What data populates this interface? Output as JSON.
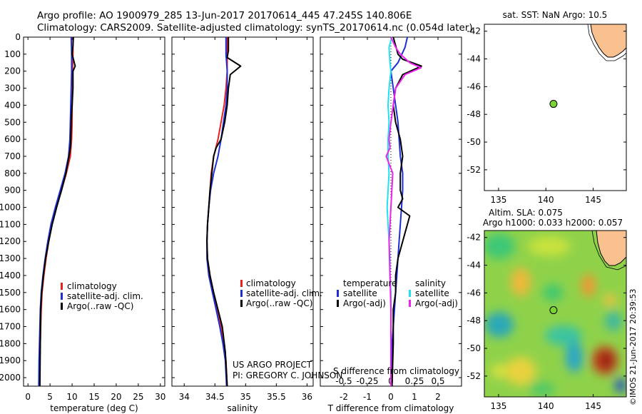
{
  "header": {
    "line1": "Argo profile: AO 1900979_285 13-Jun-2017 20170614_445 47.245S 140.806E",
    "line2": "Climatology: CARS2009. Satellite-adjusted climatology: synTS_20170614.nc (0.054d later)"
  },
  "colors": {
    "climatology": "#e8231f",
    "satellite": "#1f2fd6",
    "argo": "#000000",
    "sal_satellite": "#22e0f0",
    "sal_argo": "#ee22ee",
    "land": "#f9c18f",
    "float": "#7cd434"
  },
  "chart_data": [
    {
      "type": "line",
      "xlabel": "temperature (deg C)",
      "ylabel": "",
      "xlim": [
        -1,
        31
      ],
      "ylim": [
        2050,
        0
      ],
      "xticks": [
        0,
        5,
        10,
        15,
        20,
        25,
        30
      ],
      "yticks": [
        0,
        100,
        200,
        300,
        400,
        500,
        600,
        700,
        800,
        900,
        1000,
        1100,
        1200,
        1300,
        1400,
        1500,
        1600,
        1700,
        1800,
        1900,
        2000
      ],
      "legend": [
        "climatology",
        "satellite-adj. clim.",
        "Argo(..raw -QC)"
      ],
      "series": [
        {
          "name": "climatology",
          "x": [
            10.2,
            10.2,
            10.1,
            10.1,
            10.0,
            10.0,
            9.9,
            9.6,
            8.7,
            7.6,
            6.4,
            5.4,
            4.7,
            4.1,
            3.6,
            3.2,
            3.0,
            2.9,
            2.8,
            2.7,
            2.65
          ],
          "y": [
            0,
            100,
            200,
            300,
            400,
            500,
            600,
            700,
            800,
            900,
            1000,
            1100,
            1200,
            1300,
            1400,
            1500,
            1600,
            1700,
            1800,
            1900,
            2050
          ]
        },
        {
          "name": "satellite-adj. clim.",
          "x": [
            9.8,
            9.9,
            9.9,
            9.8,
            9.7,
            9.6,
            9.5,
            9.2,
            8.4,
            7.3,
            6.2,
            5.2,
            4.5,
            3.9,
            3.4,
            3.0,
            2.8,
            2.7,
            2.6,
            2.5,
            2.45
          ],
          "y": [
            0,
            100,
            200,
            300,
            400,
            500,
            600,
            700,
            800,
            900,
            1000,
            1100,
            1200,
            1300,
            1400,
            1500,
            1600,
            1700,
            1800,
            1900,
            2050
          ]
        },
        {
          "name": "Argo(..raw -QC)",
          "x": [
            10.3,
            10.2,
            10.0,
            10.7,
            10.2,
            10.2,
            10.0,
            9.8,
            9.7,
            9.6,
            9.3,
            8.6,
            7.6,
            6.5,
            5.5,
            4.7,
            4.0,
            3.5,
            3.1,
            2.9,
            2.8,
            2.7
          ],
          "y": [
            0,
            50,
            100,
            170,
            200,
            300,
            400,
            500,
            600,
            650,
            700,
            800,
            900,
            1000,
            1100,
            1200,
            1300,
            1400,
            1500,
            1600,
            1800,
            2050
          ]
        }
      ]
    },
    {
      "type": "line",
      "xlabel": "salinity",
      "xlim": [
        33.8,
        36.1
      ],
      "ylim": [
        2050,
        0
      ],
      "xticks": [
        34,
        34.5,
        35,
        35.5,
        36
      ],
      "legend": [
        "climatology",
        "satellite-adj. clim.",
        "Argo(..raw -QC)"
      ],
      "annotation": [
        "US ARGO PROJECT",
        "PI: GREGORY C. JOHNSON"
      ],
      "series": [
        {
          "name": "climatology",
          "x": [
            34.7,
            34.7,
            34.7,
            34.68,
            34.65,
            34.6,
            34.55,
            34.48,
            34.44,
            34.42,
            34.4,
            34.38,
            34.37,
            34.38,
            34.42,
            34.48,
            34.54,
            34.6,
            34.65,
            34.68,
            34.7
          ],
          "y": [
            0,
            100,
            200,
            300,
            400,
            500,
            600,
            700,
            800,
            900,
            1000,
            1100,
            1200,
            1300,
            1400,
            1500,
            1600,
            1700,
            1800,
            1900,
            2050
          ]
        },
        {
          "name": "satellite-adj. clim.",
          "x": [
            34.68,
            34.68,
            34.7,
            34.7,
            34.68,
            34.64,
            34.6,
            34.55,
            34.48,
            34.43,
            34.4,
            34.38,
            34.37,
            34.37,
            34.4,
            34.46,
            34.52,
            34.58,
            34.63,
            34.67,
            34.69
          ],
          "y": [
            0,
            100,
            200,
            300,
            400,
            500,
            600,
            700,
            800,
            900,
            1000,
            1100,
            1200,
            1300,
            1400,
            1500,
            1600,
            1700,
            1800,
            1900,
            2050
          ]
        },
        {
          "name": "Argo(..raw -QC)",
          "x": [
            34.72,
            34.72,
            34.7,
            34.92,
            34.75,
            34.72,
            34.7,
            34.66,
            34.6,
            34.52,
            34.48,
            34.45,
            34.42,
            34.4,
            34.38,
            34.37,
            34.38,
            34.42,
            34.48,
            34.55,
            34.62,
            34.67,
            34.7
          ],
          "y": [
            0,
            80,
            120,
            170,
            220,
            300,
            400,
            500,
            600,
            650,
            700,
            800,
            900,
            1000,
            1100,
            1200,
            1300,
            1400,
            1500,
            1600,
            1700,
            1850,
            2050
          ]
        }
      ]
    },
    {
      "type": "line",
      "xlabel": "T difference from climatology",
      "xlabel_top": "S difference from climatology",
      "xlim": [
        -3,
        3
      ],
      "ylim": [
        2050,
        0
      ],
      "xticks": [
        -2,
        -1,
        0,
        1,
        2
      ],
      "xticks_top": [
        "-0.5",
        "-0.25",
        "0",
        "0.25",
        "0.5"
      ],
      "legend_temperature": [
        "temperature",
        "satellite",
        "Argo(-adj)"
      ],
      "legend_salinity": [
        "salinity",
        "satellite",
        "Argo(-adj)"
      ],
      "series": [
        {
          "name": "T satellite",
          "x": [
            0.7,
            0.6,
            0.3,
            0.0,
            0.1,
            0.2,
            0.3,
            0.35,
            0.4,
            0.5,
            0.5,
            0.45,
            0.4,
            0.35,
            0.3,
            0.25,
            0.2,
            0.15,
            0.1,
            0.05,
            0.0
          ],
          "y": [
            0,
            60,
            150,
            200,
            300,
            400,
            500,
            600,
            700,
            800,
            900,
            1000,
            1100,
            1200,
            1300,
            1400,
            1500,
            1600,
            1700,
            1800,
            2050
          ]
        },
        {
          "name": "T Argo(-adj)",
          "x": [
            0.1,
            0.2,
            0.3,
            0.5,
            1.3,
            0.5,
            0.2,
            0.1,
            0.2,
            0.4,
            0.5,
            0.4,
            0.4,
            0.5,
            0.3,
            0.8,
            0.7,
            0.5,
            0.3,
            0.2,
            0.2,
            0.1,
            0.1,
            0.05
          ],
          "y": [
            0,
            50,
            100,
            130,
            170,
            220,
            300,
            400,
            500,
            600,
            700,
            800,
            900,
            950,
            1000,
            1050,
            1100,
            1200,
            1300,
            1400,
            1500,
            1600,
            1800,
            2050
          ]
        },
        {
          "name": "S satellite",
          "x": [
            0.01,
            -0.02,
            -0.01,
            0.0,
            -0.02,
            -0.03,
            -0.02,
            -0.03,
            -0.03,
            -0.02,
            -0.03,
            -0.04,
            -0.03,
            -0.02,
            -0.01,
            -0.01,
            0.0,
            0.0,
            0.0,
            0.0,
            0.0
          ],
          "y": [
            0,
            60,
            150,
            200,
            300,
            400,
            500,
            600,
            700,
            800,
            900,
            1000,
            1100,
            1200,
            1300,
            1400,
            1500,
            1600,
            1700,
            1800,
            2050
          ]
        },
        {
          "name": "S Argo(-adj)",
          "x": [
            0.0,
            0.05,
            0.1,
            0.2,
            0.32,
            0.15,
            0.05,
            0.0,
            -0.02,
            -0.01,
            -0.05,
            0.02,
            0.0,
            -0.02,
            -0.01,
            0.0,
            0.0,
            0.0
          ],
          "y": [
            0,
            60,
            100,
            150,
            180,
            220,
            300,
            500,
            600,
            650,
            700,
            800,
            1000,
            1200,
            1400,
            1600,
            1800,
            2050
          ]
        }
      ]
    },
    {
      "type": "scatter",
      "title": "sat. SST: NaN Argo: 10.5",
      "xlim": [
        133.5,
        148.5
      ],
      "ylim": [
        -53.5,
        -41.5
      ],
      "xticks": [
        135,
        140,
        145
      ],
      "yticks": [
        -42,
        -44,
        -46,
        -48,
        -50,
        -52
      ],
      "points": [
        {
          "x": 140.806,
          "y": -47.245
        }
      ]
    },
    {
      "type": "heatmap",
      "title_line1": "Altim. SLA: 0.075",
      "title_line2": "Argo h1000: 0.033 h2000: 0.057",
      "xlim": [
        133.5,
        148.5
      ],
      "ylim": [
        -53.5,
        -41.5
      ],
      "xticks": [
        135,
        140,
        145
      ],
      "yticks": [
        -42,
        -44,
        -46,
        -48,
        -50,
        -52
      ],
      "points": [
        {
          "x": 140.806,
          "y": -47.245
        }
      ]
    }
  ],
  "side_label": "©IMOS 21-Jun-2017 20:39:53"
}
